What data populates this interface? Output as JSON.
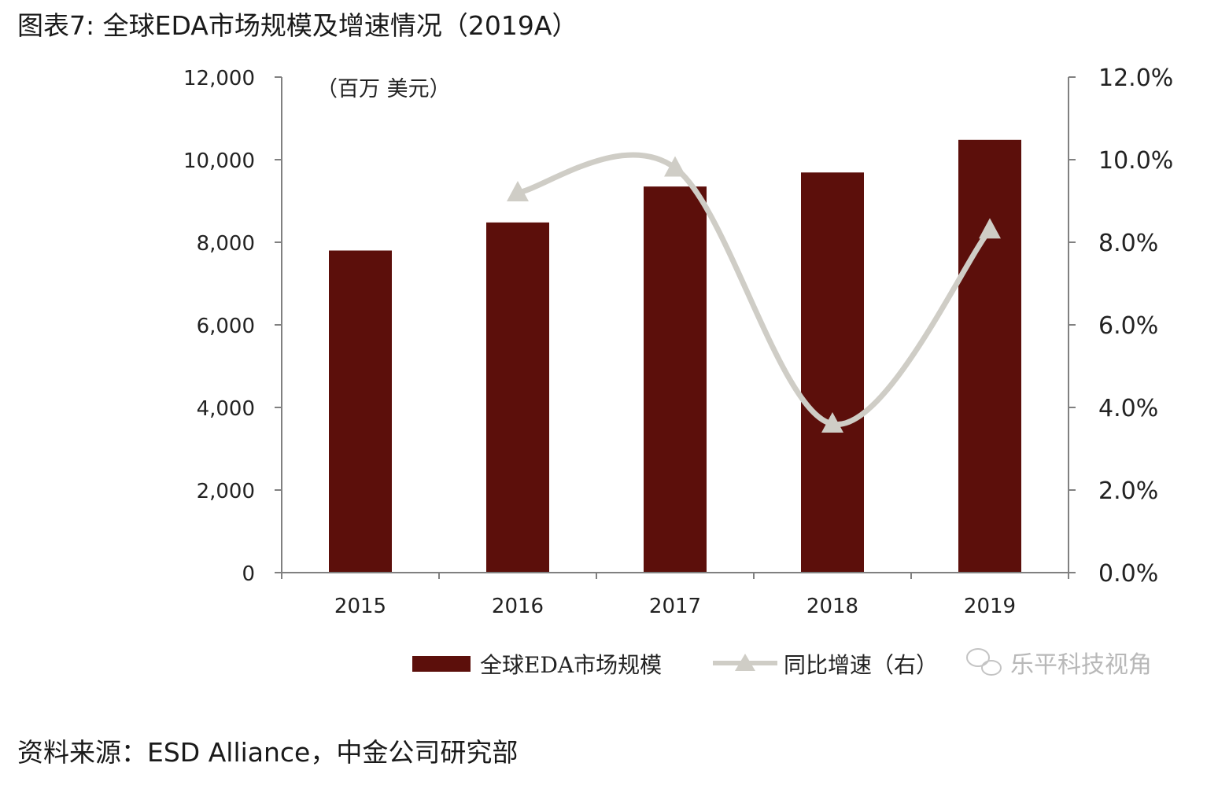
{
  "figure_title": "图表7: 全球EDA市场规模及增速情况（2019A）",
  "source_note": "资料来源：ESD Alliance，中金公司研究部",
  "watermark": "乐平科技视角",
  "colors": {
    "bar": "#5c0f0b",
    "line": "#cfcdc6",
    "axis": "#808080"
  },
  "chart_data": {
    "type": "bar+line",
    "unit_label": "（百万  美元）",
    "categories": [
      "2015",
      "2016",
      "2017",
      "2018",
      "2019"
    ],
    "series": [
      {
        "name": "全球EDA市场规模",
        "type": "bar",
        "axis": "left",
        "values": [
          7800,
          8480,
          9350,
          9690,
          10480
        ]
      },
      {
        "name": "同比增速（右）",
        "type": "line",
        "axis": "right",
        "values": [
          null,
          9.2,
          9.8,
          3.6,
          8.3
        ]
      }
    ],
    "y_left": {
      "min": 0,
      "max": 12000,
      "step": 2000,
      "tick_labels": [
        "0",
        "2,000",
        "4,000",
        "6,000",
        "8,000",
        "10,000",
        "12,000"
      ]
    },
    "y_right": {
      "min": 0,
      "max": 12,
      "step": 2,
      "tick_labels": [
        "0.0%",
        "2.0%",
        "4.0%",
        "6.0%",
        "8.0%",
        "10.0%",
        "12.0%"
      ]
    },
    "legend": [
      {
        "label": "全球EDA市场规模",
        "kind": "bar"
      },
      {
        "label": "同比增速（右）",
        "kind": "line"
      }
    ],
    "legend_position": "bottom",
    "grid": false
  }
}
